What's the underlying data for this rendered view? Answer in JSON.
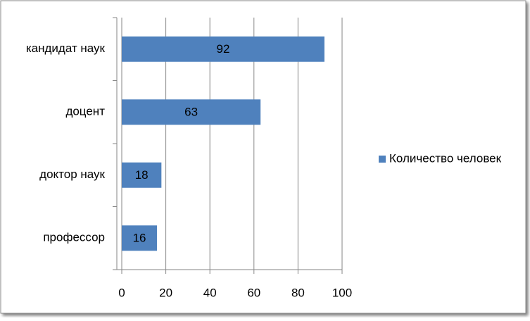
{
  "chart_data": {
    "type": "hbar",
    "categories": [
      "кандидат наук",
      "доцент",
      "доктор наук",
      "профессор"
    ],
    "series": [
      {
        "name": "Количество человек",
        "color": "#4f81bd",
        "values": [
          92,
          63,
          18,
          16
        ]
      }
    ],
    "xlim": [
      0,
      100
    ],
    "xticks": [
      0,
      20,
      40,
      60,
      80,
      100
    ],
    "grid": true,
    "legend": "right"
  }
}
